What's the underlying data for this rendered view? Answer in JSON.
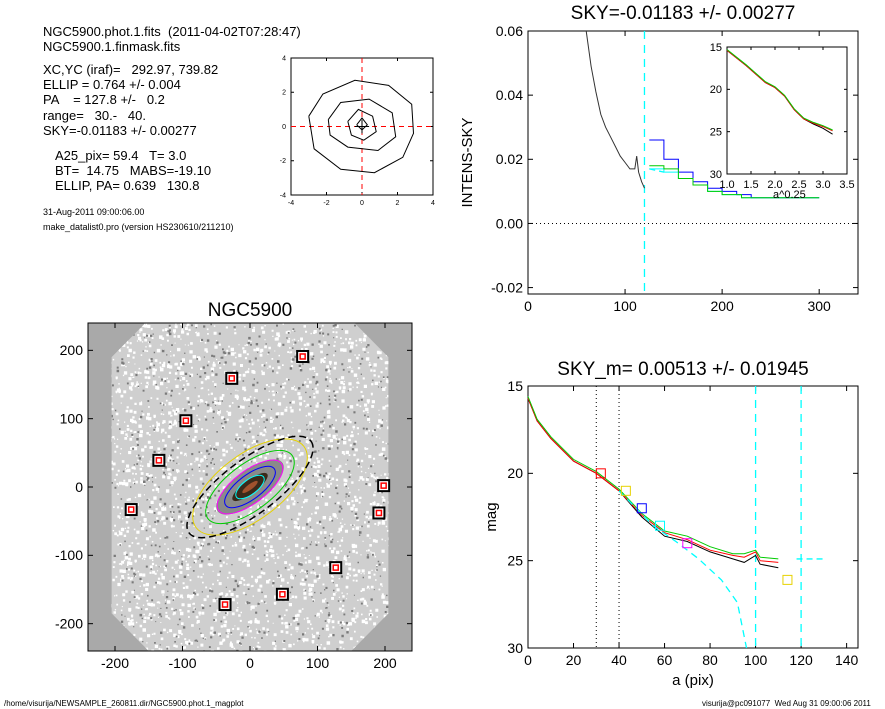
{
  "header": {
    "lines1": [
      "NGC5900.phot.1.fits  (2011-04-02T07:28:47)",
      "NGC5900.1.finmask.fits"
    ],
    "lines2": [
      "XC,YC (iraf)=   292.97, 739.82",
      "ELLIP = 0.764 +/- 0.004",
      "PA    = 127.8 +/-   0.2",
      "range=   30.-   40.",
      "SKY=-0.01183 +/- 0.00277"
    ],
    "lines3": [
      "A25_pix= 59.4   T= 3.0",
      "BT=  14.75   MABS=-19.10",
      "ELLIP, PA= 0.639   130.8"
    ],
    "date": "31-Aug-2011 09:00:06.00",
    "program": "make_datalist0.pro (version HS230610/211210)"
  },
  "footer": {
    "path": "/home/visurija/NEWSAMPLE_260811.dir/NGC5900.phot.1_magplot",
    "user": "visurija@pc091077  Wed Aug 31 09:00:06 2011"
  },
  "colors": {
    "black": "#000000",
    "red": "#ff0000",
    "green": "#00cc00",
    "blue": "#0000ff",
    "cyan": "#00ffff",
    "yellow": "#e6d200",
    "magenta": "#ff00ff",
    "gray": "#a9a9a9"
  },
  "chart_data": [
    {
      "id": "contour",
      "type": "contour",
      "x_ticks": [
        "-4",
        "-2",
        "0",
        "2",
        "4"
      ],
      "y_ticks": [
        "4",
        "2",
        "0",
        "-2",
        "-4"
      ],
      "xlim": [
        -4,
        4
      ],
      "ylim": [
        -4,
        4
      ],
      "levels": [
        [
          [
            -3.0,
            0.6
          ],
          [
            -2.2,
            1.9
          ],
          [
            -0.4,
            2.7
          ],
          [
            1.5,
            2.4
          ],
          [
            2.8,
            1.3
          ],
          [
            2.9,
            -0.4
          ],
          [
            2.3,
            -1.8
          ],
          [
            0.7,
            -2.7
          ],
          [
            -1.2,
            -2.5
          ],
          [
            -2.7,
            -1.3
          ],
          [
            -3.0,
            0.6
          ]
        ],
        [
          [
            -1.9,
            0.4
          ],
          [
            -1.2,
            1.4
          ],
          [
            0.4,
            1.6
          ],
          [
            1.7,
            0.8
          ],
          [
            1.9,
            -0.6
          ],
          [
            0.9,
            -1.4
          ],
          [
            -0.8,
            -1.2
          ],
          [
            -1.8,
            -0.5
          ],
          [
            -1.9,
            0.4
          ]
        ],
        [
          [
            -0.8,
            0.3
          ],
          [
            -0.2,
            1.0
          ],
          [
            0.6,
            0.6
          ],
          [
            0.8,
            -0.3
          ],
          [
            0.1,
            -0.8
          ],
          [
            -0.6,
            -0.5
          ],
          [
            -0.8,
            0.3
          ]
        ],
        [
          [
            -0.3,
            0.1
          ],
          [
            0,
            0.5
          ],
          [
            0.3,
            0.1
          ],
          [
            0,
            -0.2
          ],
          [
            -0.3,
            0.1
          ]
        ]
      ]
    },
    {
      "id": "sky_profile",
      "type": "line",
      "title": "SKY=-0.01183 +/- 0.00277",
      "ylabel": "INTENS-SKY",
      "xlim": [
        0,
        340
      ],
      "ylim": [
        -0.022,
        0.06
      ],
      "x_ticks": [
        "0",
        "100",
        "200",
        "300"
      ],
      "y_ticks": [
        "0.06",
        "0.04",
        "0.02",
        "0.00",
        "-0.02"
      ],
      "sky_level": 0.0,
      "range_line_x": 120,
      "series": [
        {
          "color": "black",
          "points": [
            [
              60,
              0.06
            ],
            [
              65,
              0.049
            ],
            [
              70,
              0.041
            ],
            [
              75,
              0.034
            ],
            [
              80,
              0.03
            ],
            [
              85,
              0.027
            ],
            [
              90,
              0.024
            ],
            [
              95,
              0.021
            ],
            [
              100,
              0.019
            ],
            [
              105,
              0.017
            ],
            [
              110,
              0.017
            ],
            [
              112,
              0.021
            ],
            [
              114,
              0.016
            ],
            [
              117,
              0.013
            ],
            [
              120,
              0.011
            ]
          ]
        },
        {
          "color": "blue",
          "points": [
            [
              125,
              0.026
            ],
            [
              140,
              0.02
            ],
            [
              155,
              0.016
            ],
            [
              170,
              0.013
            ],
            [
              185,
              0.011
            ],
            [
              200,
              0.01
            ],
            [
              215,
              0.009
            ],
            [
              230,
              0.008
            ],
            [
              260,
              0.008
            ],
            [
              300,
              0.008
            ]
          ]
        },
        {
          "color": "cyan",
          "points": [
            [
              125,
              0.017
            ],
            [
              140,
              0.016
            ],
            [
              155,
              0.014
            ],
            [
              170,
              0.012
            ],
            [
              185,
              0.01
            ],
            [
              200,
              0.009
            ],
            [
              220,
              0.008
            ],
            [
              260,
              0.008
            ],
            [
              300,
              0.008
            ]
          ]
        },
        {
          "color": "green",
          "points": [
            [
              125,
              0.018
            ],
            [
              140,
              0.017
            ],
            [
              155,
              0.014
            ],
            [
              170,
              0.012
            ],
            [
              185,
              0.01
            ],
            [
              200,
              0.009
            ],
            [
              220,
              0.008
            ],
            [
              260,
              0.008
            ],
            [
              300,
              0.008
            ]
          ]
        }
      ]
    },
    {
      "id": "sky_inset",
      "type": "line",
      "xlabel": "a^0.25",
      "xlim": [
        1.0,
        3.5
      ],
      "ylim": [
        30,
        15
      ],
      "x_ticks": [
        "1.0",
        "1.5",
        "2.0",
        "2.5",
        "3.0",
        "3.5"
      ],
      "y_ticks": [
        "15",
        "20",
        "25",
        "30"
      ],
      "series": [
        {
          "color": "black",
          "points": [
            [
              1.0,
              15.4
            ],
            [
              1.2,
              16.3
            ],
            [
              1.4,
              17.2
            ],
            [
              1.6,
              18.2
            ],
            [
              1.8,
              19.2
            ],
            [
              2.0,
              19.8
            ],
            [
              2.2,
              20.8
            ],
            [
              2.4,
              22.4
            ],
            [
              2.6,
              23.5
            ],
            [
              2.8,
              24.1
            ],
            [
              3.0,
              24.6
            ],
            [
              3.2,
              25.3
            ]
          ]
        },
        {
          "color": "red",
          "points": [
            [
              1.0,
              15.4
            ],
            [
              1.2,
              16.3
            ],
            [
              1.4,
              17.2
            ],
            [
              1.6,
              18.2
            ],
            [
              1.8,
              19.2
            ],
            [
              2.0,
              19.8
            ],
            [
              2.2,
              20.8
            ],
            [
              2.4,
              22.4
            ],
            [
              2.6,
              23.5
            ],
            [
              2.8,
              24.0
            ],
            [
              3.0,
              24.4
            ],
            [
              3.2,
              24.9
            ]
          ]
        },
        {
          "color": "green",
          "points": [
            [
              1.0,
              15.3
            ],
            [
              1.2,
              16.2
            ],
            [
              1.4,
              17.1
            ],
            [
              1.6,
              18.1
            ],
            [
              1.8,
              19.1
            ],
            [
              2.0,
              19.7
            ],
            [
              2.2,
              20.7
            ],
            [
              2.4,
              22.3
            ],
            [
              2.6,
              23.4
            ],
            [
              2.8,
              23.9
            ],
            [
              3.0,
              24.3
            ],
            [
              3.2,
              24.8
            ]
          ]
        }
      ]
    },
    {
      "id": "galaxy_image",
      "type": "image",
      "title": "NGC5900",
      "xlim": [
        -240,
        240
      ],
      "ylim": [
        -240,
        240
      ],
      "x_ticks": [
        "-200",
        "-100",
        "0",
        "100",
        "200"
      ],
      "y_ticks": [
        "200",
        "100",
        "0",
        "-100",
        "-200"
      ],
      "markers": [
        [
          78,
          191
        ],
        [
          -27,
          159
        ],
        [
          -95,
          97
        ],
        [
          -135,
          39
        ],
        [
          -176,
          -33
        ],
        [
          198,
          2
        ],
        [
          191,
          -38
        ],
        [
          127,
          -118
        ],
        [
          48,
          -157
        ],
        [
          -37,
          -172
        ]
      ],
      "ellipses": [
        {
          "color": "cyan",
          "a": 25,
          "b": 11
        },
        {
          "color": "blue",
          "a": 45,
          "b": 18
        },
        {
          "color": "magenta",
          "a": 58,
          "b": 24
        },
        {
          "color": "green",
          "a": 78,
          "b": 34
        },
        {
          "color": "yellow",
          "a": 100,
          "b": 48
        },
        {
          "color": "black",
          "a": 113,
          "b": 40
        }
      ],
      "position_angle_deg": 37
    },
    {
      "id": "mag_profile",
      "type": "line",
      "title": "SKY_m=  0.00513 +/- 0.01945",
      "xlabel": "a (pix)",
      "ylabel": "mag",
      "xlim": [
        0,
        145
      ],
      "ylim": [
        30,
        15
      ],
      "x_ticks": [
        "0",
        "20",
        "40",
        "60",
        "80",
        "100",
        "120",
        "140"
      ],
      "y_ticks": [
        "15",
        "20",
        "25",
        "30"
      ],
      "vlines_dotted": [
        30,
        40
      ],
      "vlines_dashed": [
        100,
        120
      ],
      "series": [
        {
          "color": "black",
          "points": [
            [
              0,
              15.7
            ],
            [
              4,
              17.0
            ],
            [
              10,
              18.0
            ],
            [
              20,
              19.3
            ],
            [
              30,
              20.0
            ],
            [
              40,
              21.0
            ],
            [
              50,
              22.5
            ],
            [
              60,
              23.6
            ],
            [
              70,
              23.9
            ],
            [
              80,
              24.5
            ],
            [
              90,
              24.9
            ],
            [
              95,
              25.1
            ],
            [
              100,
              24.7
            ],
            [
              102,
              25.2
            ],
            [
              110,
              25.4
            ]
          ]
        },
        {
          "color": "red",
          "points": [
            [
              0,
              15.7
            ],
            [
              4,
              17.0
            ],
            [
              10,
              18.0
            ],
            [
              20,
              19.3
            ],
            [
              30,
              20.0
            ],
            [
              40,
              21.0
            ],
            [
              50,
              22.4
            ],
            [
              60,
              23.4
            ],
            [
              70,
              23.8
            ],
            [
              80,
              24.4
            ],
            [
              90,
              24.7
            ],
            [
              95,
              24.8
            ],
            [
              100,
              24.5
            ],
            [
              102,
              25.0
            ],
            [
              110,
              25.1
            ]
          ]
        },
        {
          "color": "green",
          "points": [
            [
              0,
              15.6
            ],
            [
              4,
              16.9
            ],
            [
              10,
              17.9
            ],
            [
              20,
              19.2
            ],
            [
              30,
              19.9
            ],
            [
              40,
              20.9
            ],
            [
              50,
              22.3
            ],
            [
              60,
              23.3
            ],
            [
              70,
              23.6
            ],
            [
              80,
              24.2
            ],
            [
              90,
              24.6
            ],
            [
              95,
              24.6
            ],
            [
              100,
              24.4
            ],
            [
              102,
              24.8
            ],
            [
              110,
              24.9
            ]
          ]
        },
        {
          "color": "cyan",
          "dashed": true,
          "points": [
            [
              40,
              21.0
            ],
            [
              55,
              23.0
            ],
            [
              65,
              23.9
            ],
            [
              75,
              24.9
            ],
            [
              85,
              26.1
            ],
            [
              92,
              27.4
            ],
            [
              96,
              30.0
            ]
          ]
        }
      ],
      "markers": [
        {
          "color": "red",
          "x": 32,
          "y": 20.0
        },
        {
          "color": "yellow",
          "x": 43,
          "y": 21.0
        },
        {
          "color": "blue",
          "x": 50,
          "y": 22.0
        },
        {
          "color": "cyan",
          "x": 58,
          "y": 23.0
        },
        {
          "color": "magenta",
          "x": 70,
          "y": 24.0
        },
        {
          "color": "yellow",
          "x": 114,
          "y": 26.1
        }
      ],
      "sky_level_mag": 24.9
    }
  ]
}
